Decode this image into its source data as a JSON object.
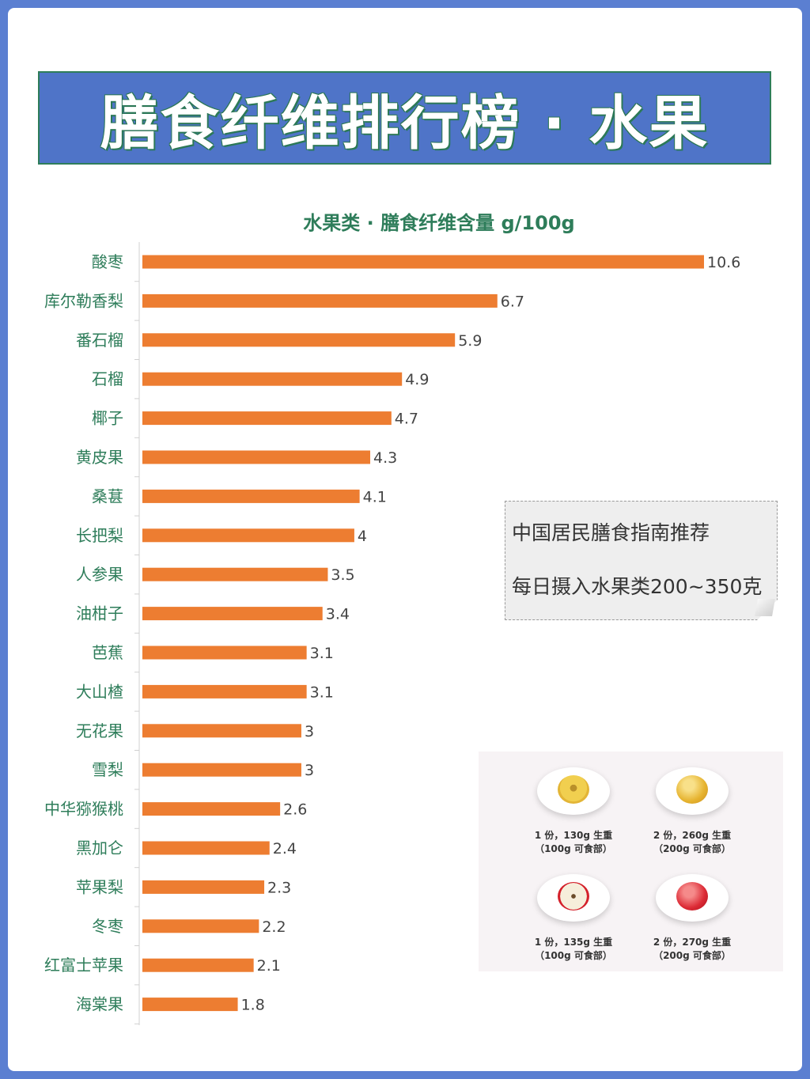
{
  "banner": {
    "title": "膳食纤维排行榜 · 水果"
  },
  "chart_data": {
    "type": "bar",
    "orientation": "horizontal",
    "title": "水果类 · 膳食纤维含量  g/100g",
    "categories": [
      "酸枣",
      "库尔勒香梨",
      "番石榴",
      "石榴",
      "椰子",
      "黄皮果",
      "桑葚",
      "长把梨",
      "人参果",
      "油柑子",
      "芭蕉",
      "大山楂",
      "无花果",
      "雪梨",
      "中华猕猴桃",
      "黑加仑",
      "苹果梨",
      "冬枣",
      "红富士苹果",
      "海棠果"
    ],
    "values": [
      10.6,
      6.7,
      5.9,
      4.9,
      4.7,
      4.3,
      4.1,
      4,
      3.5,
      3.4,
      3.1,
      3.1,
      3,
      3,
      2.6,
      2.4,
      2.3,
      2.2,
      2.1,
      1.8
    ],
    "bar_color": "#ed7d31",
    "xlim": [
      0,
      10.6
    ],
    "grid": false,
    "legend": "none"
  },
  "note": {
    "line1": "中国居民膳食指南推荐",
    "line2": "每日摄入水果类200~350克"
  },
  "fruit_panel": {
    "items": [
      {
        "caption1": "1 份，130g 生重",
        "caption2": "（100g 可食部）"
      },
      {
        "caption1": "2 份，260g 生重",
        "caption2": "（200g 可食部）"
      },
      {
        "caption1": "1 份，135g 生重",
        "caption2": "（100g 可食部）"
      },
      {
        "caption1": "2 份，270g 生重",
        "caption2": "（200g 可食部）"
      }
    ]
  }
}
